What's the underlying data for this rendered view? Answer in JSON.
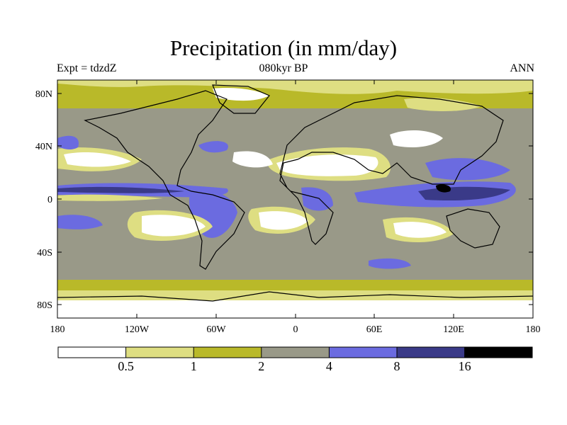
{
  "title": "Precipitation (in mm/day)",
  "subtitle_left": "Expt = tdzdZ",
  "subtitle_center": "080kyr BP",
  "subtitle_right": "ANN",
  "axes": {
    "lon_ticks": [
      "180",
      "120W",
      "60W",
      "0",
      "60E",
      "120E",
      "180"
    ],
    "lat_ticks": [
      "80N",
      "40N",
      "0",
      "40S",
      "80S"
    ]
  },
  "colorbar": {
    "levels": [
      "0.5",
      "1",
      "2",
      "4",
      "8",
      "16"
    ],
    "colors": [
      "#ffffff",
      "#dede82",
      "#b9b929",
      "#999988",
      "#6b6be0",
      "#3a3a88",
      "#000000"
    ]
  }
}
